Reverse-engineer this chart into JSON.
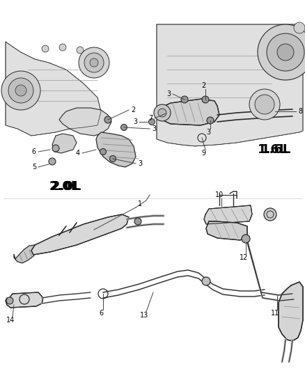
{
  "bg_color": "#ffffff",
  "fig_width": 4.38,
  "fig_height": 5.33,
  "dpi": 100,
  "label_2_0L": "2.0L",
  "label_1_6L": "1.6L",
  "lc": "#2a2a2a",
  "tc": "#000000",
  "llc": "#444444",
  "fc_engine": "#d8d8d8",
  "fc_part": "#e8e8e8",
  "fc_dark": "#b0b0b0"
}
